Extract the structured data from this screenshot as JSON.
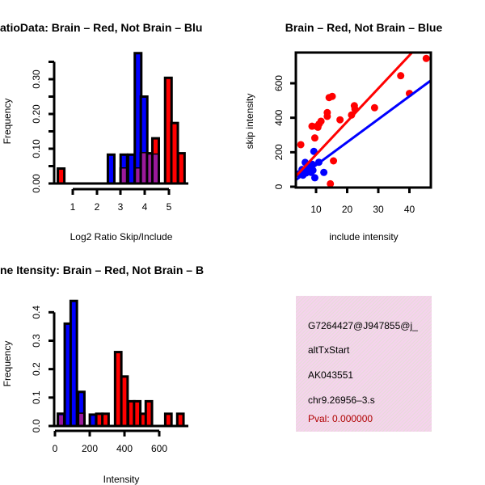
{
  "chart_data": [
    {
      "type": "bar",
      "title": "atioData: Brain – Red, Not Brain – Blu",
      "xlabel": "Log2 Ratio Skip/Include",
      "ylabel": "Frequency",
      "xticks": [
        "1",
        "2",
        "3",
        "4",
        "5"
      ],
      "yticks": [
        "0.00",
        "0.10",
        "0.20",
        "0.30"
      ],
      "ytick_values": [
        0,
        0.05,
        0.1,
        0.15,
        0.2,
        0.25,
        0.3,
        0.35
      ],
      "xlim": [
        0.3,
        5.6
      ],
      "ylim": [
        0,
        0.375
      ],
      "bin_width": 0.27,
      "bars": [
        {
          "x": 0.38,
          "red": 0.043,
          "blue": 0,
          "overlap": 0
        },
        {
          "x": 2.46,
          "red": 0,
          "blue": 0.083,
          "overlap": 0
        },
        {
          "x": 2.99,
          "red": 0.043,
          "blue": 0.083,
          "overlap": 0.043
        },
        {
          "x": 3.3,
          "red": 0,
          "blue": 0.083,
          "overlap": 0
        },
        {
          "x": 3.58,
          "red": 0.043,
          "blue": 0.375,
          "overlap": 0.043
        },
        {
          "x": 3.83,
          "red": 0.087,
          "blue": 0.25,
          "overlap": 0.087
        },
        {
          "x": 4.09,
          "red": 0.087,
          "blue": 0.083,
          "overlap": 0.083
        },
        {
          "x": 4.31,
          "red": 0.13,
          "blue": 0.083,
          "overlap": 0.083
        },
        {
          "x": 4.84,
          "red": 0.304,
          "blue": 0,
          "overlap": 0
        },
        {
          "x": 5.1,
          "red": 0.174,
          "blue": 0,
          "overlap": 0
        },
        {
          "x": 5.38,
          "red": 0.087,
          "blue": 0,
          "overlap": 0
        }
      ]
    },
    {
      "type": "scatter",
      "title": "Brain – Red, Not Brain – Blue",
      "xlabel": "include intensity",
      "ylabel": "skip intensity",
      "xticks": [
        "10",
        "20",
        "30",
        "40"
      ],
      "yticks": [
        "0",
        "200",
        "400",
        "600"
      ],
      "xlim": [
        3.5,
        47
      ],
      "ylim": [
        0,
        778
      ],
      "series": [
        {
          "name": "Brain",
          "color": "#ff0000",
          "points": [
            [
              5.1,
              244
            ],
            [
              9.6,
              283
            ],
            [
              8.7,
              351
            ],
            [
              10.6,
              345
            ],
            [
              11.0,
              364
            ],
            [
              11.6,
              380
            ],
            [
              13.6,
              408
            ],
            [
              13.6,
              430
            ],
            [
              14.2,
              517
            ],
            [
              15.2,
              524
            ],
            [
              15.6,
              150
            ],
            [
              14.6,
              17
            ],
            [
              17.7,
              388
            ],
            [
              21.4,
              416
            ],
            [
              22.3,
              470
            ],
            [
              22.5,
              450
            ],
            [
              28.8,
              458
            ],
            [
              37.2,
              644
            ],
            [
              40.0,
              541
            ],
            [
              45.4,
              744
            ],
            [
              10.2,
              350
            ]
          ],
          "fit": {
            "intercept": -6,
            "slope": 19.2
          }
        },
        {
          "name": "Not Brain",
          "color": "#0000ff",
          "points": [
            [
              9.3,
              205
            ],
            [
              6.5,
              141
            ],
            [
              10.9,
              142
            ],
            [
              12.5,
              83
            ],
            [
              9.6,
              52
            ],
            [
              5.8,
              67
            ],
            [
              7.6,
              98
            ],
            [
              8.0,
              122
            ],
            [
              4.5,
              75
            ],
            [
              8.4,
              83
            ],
            [
              7.2,
              110
            ],
            [
              9.0,
              95
            ],
            [
              6.8,
              80
            ],
            [
              8.8,
              130
            ],
            [
              5.5,
              100
            ]
          ],
          "fit": {
            "intercept": -7.5,
            "slope": 13.3
          }
        }
      ]
    },
    {
      "type": "bar",
      "title": "ne Itensity: Brain – Red, Not Brain – B",
      "xlabel": "Intensity",
      "ylabel": "Frequency",
      "xticks": [
        "0",
        "200",
        "400",
        "600"
      ],
      "yticks": [
        "0.0",
        "0.1",
        "0.2",
        "0.3",
        "0.4"
      ],
      "ytick_values": [
        0,
        0.1,
        0.2,
        0.3,
        0.4
      ],
      "xlim": [
        0,
        750
      ],
      "ylim": [
        0,
        0.45
      ],
      "bin_width": 36,
      "bars": [
        {
          "x": 17,
          "red": 0.043,
          "blue": 0.043,
          "overlap": 0.037
        },
        {
          "x": 56,
          "red": 0,
          "blue": 0.36,
          "overlap": 0
        },
        {
          "x": 90,
          "red": 0,
          "blue": 0.44,
          "overlap": 0
        },
        {
          "x": 133,
          "red": 0.043,
          "blue": 0.12,
          "overlap": 0.043
        },
        {
          "x": 200,
          "red": 0,
          "blue": 0.04,
          "overlap": 0
        },
        {
          "x": 237,
          "red": 0.043,
          "blue": 0,
          "overlap": 0
        },
        {
          "x": 272,
          "red": 0.043,
          "blue": 0,
          "overlap": 0
        },
        {
          "x": 345,
          "red": 0.26,
          "blue": 0,
          "overlap": 0
        },
        {
          "x": 381,
          "red": 0.174,
          "blue": 0,
          "overlap": 0
        },
        {
          "x": 420,
          "red": 0.087,
          "blue": 0,
          "overlap": 0
        },
        {
          "x": 454,
          "red": 0.087,
          "blue": 0,
          "overlap": 0
        },
        {
          "x": 490,
          "red": 0.043,
          "blue": 0,
          "overlap": 0
        },
        {
          "x": 521,
          "red": 0.087,
          "blue": 0,
          "overlap": 0
        },
        {
          "x": 633,
          "red": 0.043,
          "blue": 0,
          "overlap": 0
        },
        {
          "x": 702,
          "red": 0.043,
          "blue": 0,
          "overlap": 0
        }
      ]
    }
  ],
  "info": {
    "id": "G7264427@J947855@j_",
    "event": "altTxStart",
    "accession": "AK043551",
    "locus": "chr9.26956–3.s",
    "pval": "Pval: 0.000000"
  },
  "colors": {
    "red": "#ff0000",
    "blue": "#0000ff",
    "overlap": "#9b1a9b",
    "pval": "#b00000"
  }
}
